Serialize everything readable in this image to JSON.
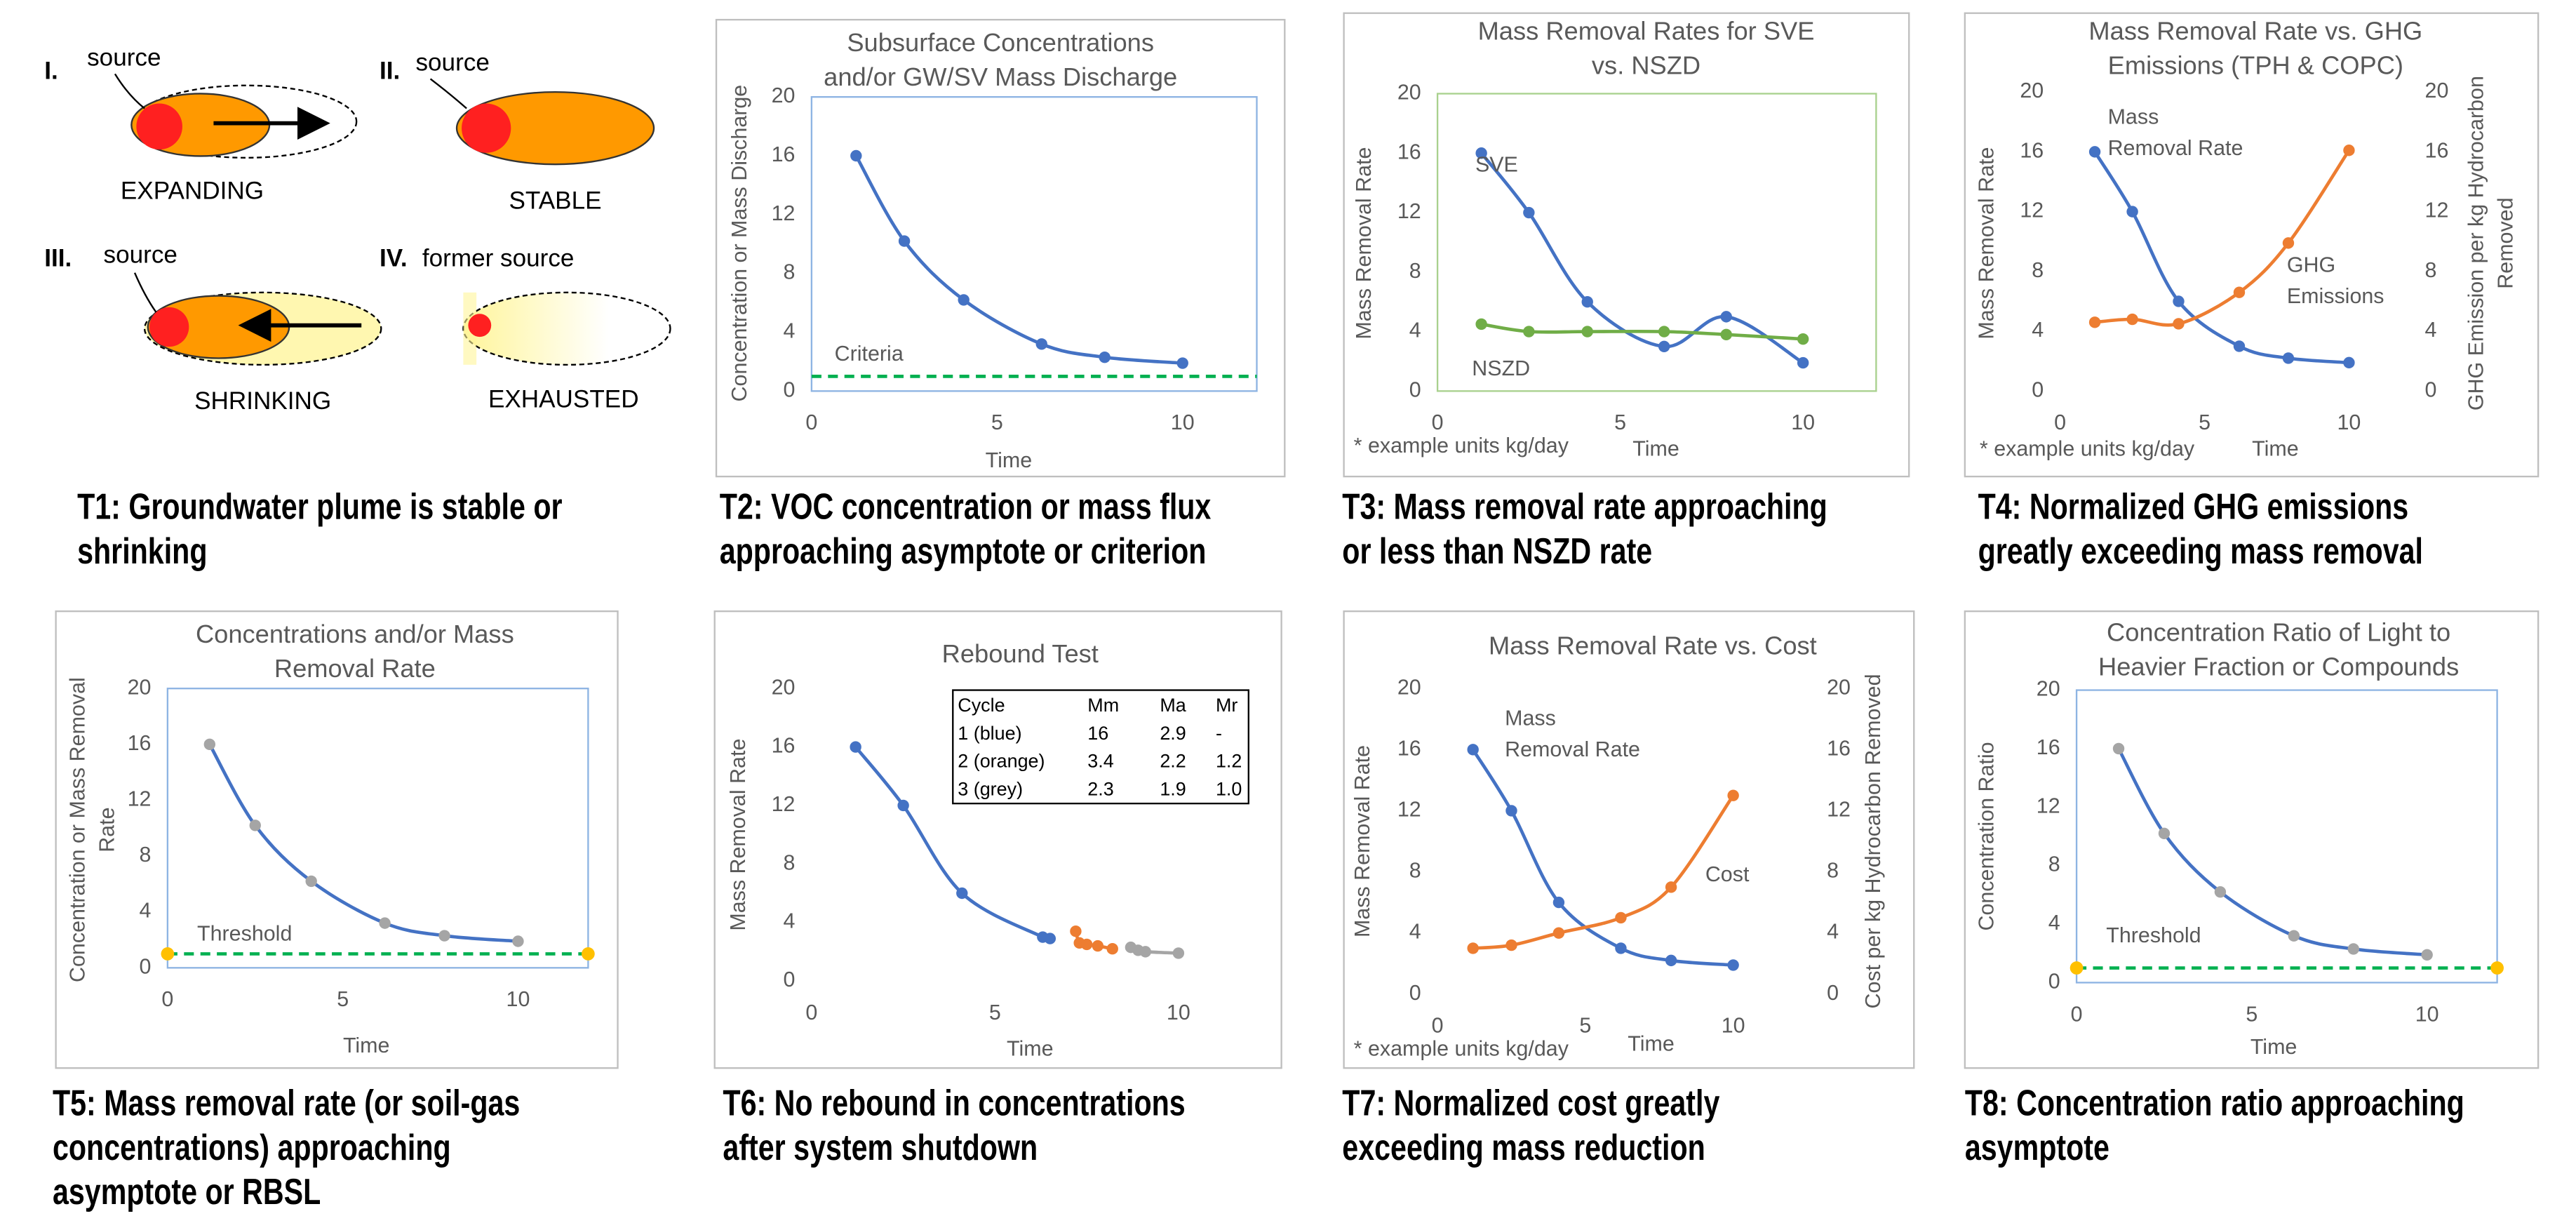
{
  "diagram": {
    "panels": [
      {
        "numeral": "I.",
        "source": "source",
        "label": "EXPANDING"
      },
      {
        "numeral": "II.",
        "source": "source",
        "label": "STABLE"
      },
      {
        "numeral": "III.",
        "source": "source",
        "label": "SHRINKING"
      },
      {
        "numeral": "IV.",
        "source": "former source",
        "label": "EXHAUSTED"
      }
    ]
  },
  "captions": [
    [
      "T1: Groundwater plume is stable or",
      "shrinking"
    ],
    [
      "T2: VOC concentration or mass flux",
      "approaching asymptote or criterion"
    ],
    [
      "T3: Mass removal rate approaching",
      "or less than NSZD rate"
    ],
    [
      "T4: Normalized GHG emissions",
      "greatly exceeding mass removal"
    ],
    [
      "T5: Mass removal rate (or soil-gas",
      "concentrations) approaching",
      "asymptote or RBSL"
    ],
    [
      "T6: No rebound in concentrations",
      "after system shutdown"
    ],
    [
      "T7: Normalized cost greatly",
      "exceeding mass reduction"
    ],
    [
      "T8:  Concentration ratio approaching",
      "asymptote"
    ]
  ],
  "chart_data": [
    {
      "type": "line",
      "title": [
        "Subsurface Concentrations",
        "and/or GW/SV Mass Discharge"
      ],
      "xlabel": "Time",
      "ylabel": "Concentration or Mass Discharge",
      "xlim": [
        0,
        12
      ],
      "ylim": [
        0,
        20
      ],
      "xticks": [
        0,
        5,
        10
      ],
      "yticks": [
        0,
        4,
        8,
        12,
        16,
        20
      ],
      "frame_color": "#8eb4e3",
      "series": [
        {
          "color": "#4472c4",
          "x": [
            1.2,
            2.5,
            4.1,
            6.2,
            7.9,
            10
          ],
          "values": [
            16,
            10.2,
            6.2,
            3.2,
            2.3,
            1.9
          ]
        }
      ],
      "threshold": 1,
      "threshold_color": "#00b050",
      "annotations": [
        "Criteria"
      ]
    },
    {
      "type": "line",
      "title": [
        "Mass Removal Rates for SVE",
        "vs. NSZD"
      ],
      "xlabel": "Time",
      "ylabel": "Mass Removal Rate",
      "footnote": "* example units kg/day",
      "xlim": [
        0,
        12
      ],
      "ylim": [
        0,
        20
      ],
      "xticks": [
        0,
        5,
        10
      ],
      "yticks": [
        0,
        4,
        8,
        12,
        16,
        20
      ],
      "frame_color": "#a9d18e",
      "series": [
        {
          "name": "SVE",
          "color": "#4472c4",
          "x": [
            1.2,
            2.5,
            4.1,
            6.2,
            7.9,
            10
          ],
          "values": [
            16,
            12,
            6,
            3,
            5,
            1.9
          ]
        },
        {
          "name": "NSZD",
          "color": "#70ad47",
          "x": [
            1.2,
            2.5,
            4.1,
            6.2,
            7.9,
            10
          ],
          "values": [
            4.5,
            4,
            4,
            4,
            3.8,
            3.5
          ]
        }
      ]
    },
    {
      "type": "line",
      "title": [
        "Mass Removal Rate vs. GHG",
        "Emissions (TPH & COPC)"
      ],
      "xlabel": "Time",
      "ylabel": "Mass Removal Rate",
      "y2label": [
        "GHG Emission per kg Hydrocarbon",
        "Removed"
      ],
      "footnote": "* example units kg/day",
      "xlim": [
        0,
        12
      ],
      "ylim": [
        0,
        20
      ],
      "xticks": [
        0,
        5,
        10
      ],
      "yticks": [
        0,
        4,
        8,
        12,
        16,
        20
      ],
      "y2lim": [
        0,
        20
      ],
      "y2ticks": [
        0,
        4,
        8,
        12,
        16,
        20
      ],
      "series": [
        {
          "name": "Mass Removal Rate",
          "color": "#4472c4",
          "x": [
            1.2,
            2.5,
            4.1,
            6.2,
            7.9,
            10
          ],
          "values": [
            16,
            12,
            6,
            3,
            2.2,
            1.9
          ]
        },
        {
          "name": "GHG Emissions",
          "color": "#ed7d31",
          "axis": "y2",
          "x": [
            1.2,
            2.5,
            4.1,
            6.2,
            7.9,
            10
          ],
          "values": [
            4.6,
            4.8,
            4.5,
            6.6,
            9.9,
            16.1
          ]
        }
      ]
    },
    {
      "type": "line",
      "title": [
        "Concentrations and/or Mass",
        "Removal Rate"
      ],
      "xlabel": "Time",
      "ylabel": [
        "Concentration or Mass Removal",
        "Rate"
      ],
      "xlim": [
        0,
        12
      ],
      "ylim": [
        0,
        20
      ],
      "xticks": [
        0,
        5,
        10
      ],
      "yticks": [
        0,
        4,
        8,
        12,
        16,
        20
      ],
      "frame_color": "#8eb4e3",
      "series": [
        {
          "color": "#4472c4",
          "marker_color": "#a5a5a5",
          "x": [
            1.2,
            2.5,
            4.1,
            6.2,
            7.9,
            10
          ],
          "values": [
            16,
            10.2,
            6.2,
            3.2,
            2.3,
            1.9
          ]
        }
      ],
      "threshold": 1,
      "threshold_color": "#00b050",
      "threshold_end_color": "#ffc000",
      "annotations": [
        "Threshold"
      ]
    },
    {
      "type": "line",
      "title": [
        "Rebound Test"
      ],
      "xlabel": "Time",
      "ylabel": "Mass Removal Rate",
      "xlim": [
        0,
        12
      ],
      "ylim": [
        0,
        20
      ],
      "xticks": [
        0,
        5,
        10
      ],
      "yticks": [
        0,
        4,
        8,
        12,
        16,
        20
      ],
      "series": [
        {
          "color": "#4472c4",
          "x": [
            1.2,
            2.5,
            4.1,
            6.3,
            6.5
          ],
          "values": [
            16,
            12,
            6,
            3,
            2.9
          ]
        },
        {
          "color": "#ed7d31",
          "x": [
            7.2,
            7.3,
            7.5,
            7.8,
            8.2
          ],
          "values": [
            3.4,
            2.6,
            2.5,
            2.4,
            2.2
          ]
        },
        {
          "color": "#a5a5a5",
          "x": [
            8.7,
            8.9,
            9.1,
            10
          ],
          "values": [
            2.3,
            2.1,
            2.0,
            1.9
          ]
        }
      ],
      "table": {
        "header": [
          "Cycle",
          "Mm",
          "Ma",
          "Mr"
        ],
        "rows": [
          [
            "1 (blue)",
            "16",
            "2.9",
            "-"
          ],
          [
            "2 (orange)",
            "3.4",
            "2.2",
            "1.2"
          ],
          [
            "3 (grey)",
            "2.3",
            "1.9",
            "1.0"
          ]
        ]
      }
    },
    {
      "type": "line",
      "title": [
        "Mass Removal Rate vs. Cost"
      ],
      "xlabel": "Time",
      "ylabel": "Mass Removal Rate",
      "y2label": [
        "Cost per kg Hydrocarbon Removed"
      ],
      "footnote": "* example units kg/day",
      "xlim": [
        0,
        12
      ],
      "ylim": [
        0,
        20
      ],
      "xticks": [
        0,
        5,
        10
      ],
      "yticks": [
        0,
        4,
        8,
        12,
        16,
        20
      ],
      "y2lim": [
        0,
        20
      ],
      "y2ticks": [
        0,
        4,
        8,
        12,
        16,
        20
      ],
      "series": [
        {
          "name": "Mass Removal Rate",
          "color": "#4472c4",
          "x": [
            1.2,
            2.5,
            4.1,
            6.2,
            7.9,
            10
          ],
          "values": [
            16,
            12,
            6,
            3,
            2.2,
            1.9
          ]
        },
        {
          "name": "Cost",
          "color": "#ed7d31",
          "axis": "y2",
          "x": [
            1.2,
            2.5,
            4.1,
            6.2,
            7.9,
            10
          ],
          "values": [
            3,
            3.2,
            4,
            5,
            7,
            13
          ]
        }
      ]
    },
    {
      "type": "line",
      "title": [
        "Concentration Ratio of Light to",
        "Heavier Fraction or Compounds"
      ],
      "xlabel": "Time",
      "ylabel": "Concentration Ratio",
      "xlim": [
        0,
        12
      ],
      "ylim": [
        0,
        20
      ],
      "xticks": [
        0,
        5,
        10
      ],
      "yticks": [
        0,
        4,
        8,
        12,
        16,
        20
      ],
      "frame_color": "#8eb4e3",
      "series": [
        {
          "color": "#4472c4",
          "marker_color": "#a5a5a5",
          "x": [
            1.2,
            2.5,
            4.1,
            6.2,
            7.9,
            10
          ],
          "values": [
            16,
            10.2,
            6.2,
            3.2,
            2.3,
            1.9
          ]
        }
      ],
      "threshold": 1,
      "threshold_color": "#00b050",
      "threshold_end_color": "#ffc000",
      "annotations": [
        "Threshold"
      ]
    }
  ]
}
